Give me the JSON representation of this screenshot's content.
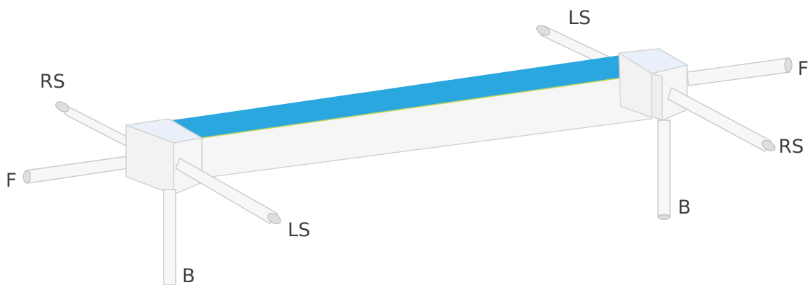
{
  "diagram": {
    "labels": {
      "rs_left": "RS",
      "f_left": "F",
      "ls_left": "LS",
      "b_left": "B",
      "ls_right": "LS",
      "f_right": "F",
      "rs_right": "RS",
      "b_right": "B"
    },
    "colors": {
      "beam_top": "#2ba7e0",
      "beam_edge": "#c8d65a",
      "box_top": "#e8f0fa",
      "box_front": "#f5f5f5",
      "rod": "#f7f7f7",
      "label": "#3f3f3f"
    }
  }
}
